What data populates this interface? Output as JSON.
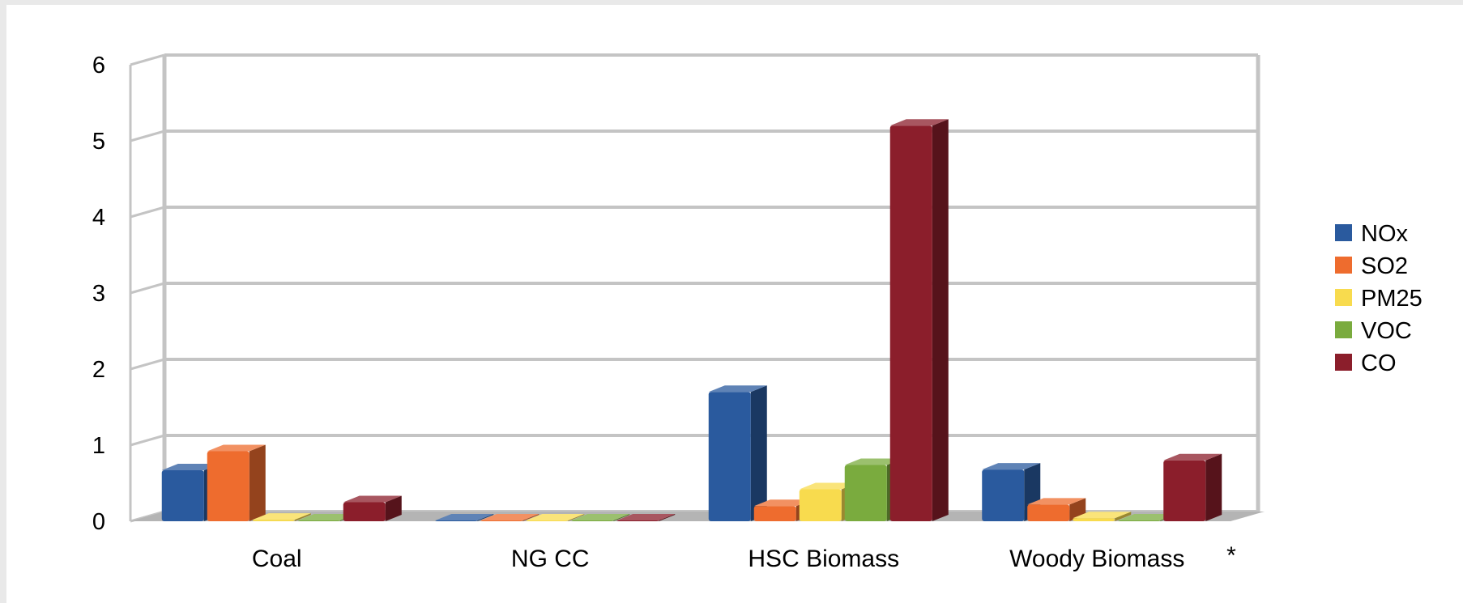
{
  "chart_data": {
    "type": "bar",
    "style": "3d-clustered-column",
    "title": "",
    "xlabel": "",
    "ylabel": "",
    "ylim": [
      0,
      6
    ],
    "yticks": [
      "0",
      "1",
      "2",
      "3",
      "4",
      "5",
      "6"
    ],
    "grid": true,
    "legend_position": "right",
    "categories": [
      "Coal",
      "NG CC",
      "HSC Biomass",
      "Woody Biomass"
    ],
    "series": [
      {
        "name": "NOx",
        "color": "#2a5a9e",
        "values": [
          0.67,
          0.01,
          1.7,
          0.68
        ]
      },
      {
        "name": "SO2",
        "color": "#ee6c2e",
        "values": [
          0.92,
          0.01,
          0.2,
          0.22
        ]
      },
      {
        "name": "PM25",
        "color": "#f8db4e",
        "values": [
          0.02,
          0.01,
          0.42,
          0.04
        ]
      },
      {
        "name": "VOC",
        "color": "#7aab3e",
        "values": [
          0.01,
          0.01,
          0.74,
          0.01
        ]
      },
      {
        "name": "CO",
        "color": "#8b1e2b",
        "values": [
          0.25,
          0.01,
          5.2,
          0.8
        ]
      }
    ],
    "annotation": "*"
  }
}
